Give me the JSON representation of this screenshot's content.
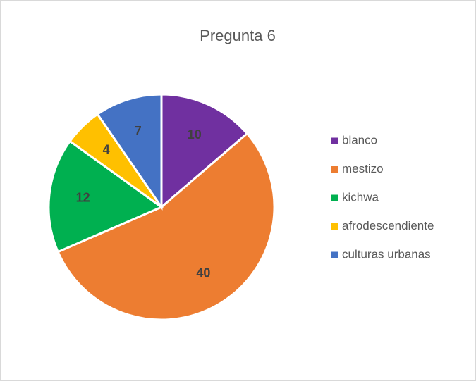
{
  "chart_data": {
    "type": "pie",
    "title": "Pregunta 6",
    "categories": [
      "blanco",
      "mestizo",
      "kichwa",
      "afrodescendiente",
      "culturas urbanas"
    ],
    "values": [
      10,
      40,
      12,
      4,
      7
    ],
    "colors": [
      "#7030a0",
      "#ed7d31",
      "#00b050",
      "#ffc000",
      "#4472c4"
    ],
    "legend": "right"
  }
}
